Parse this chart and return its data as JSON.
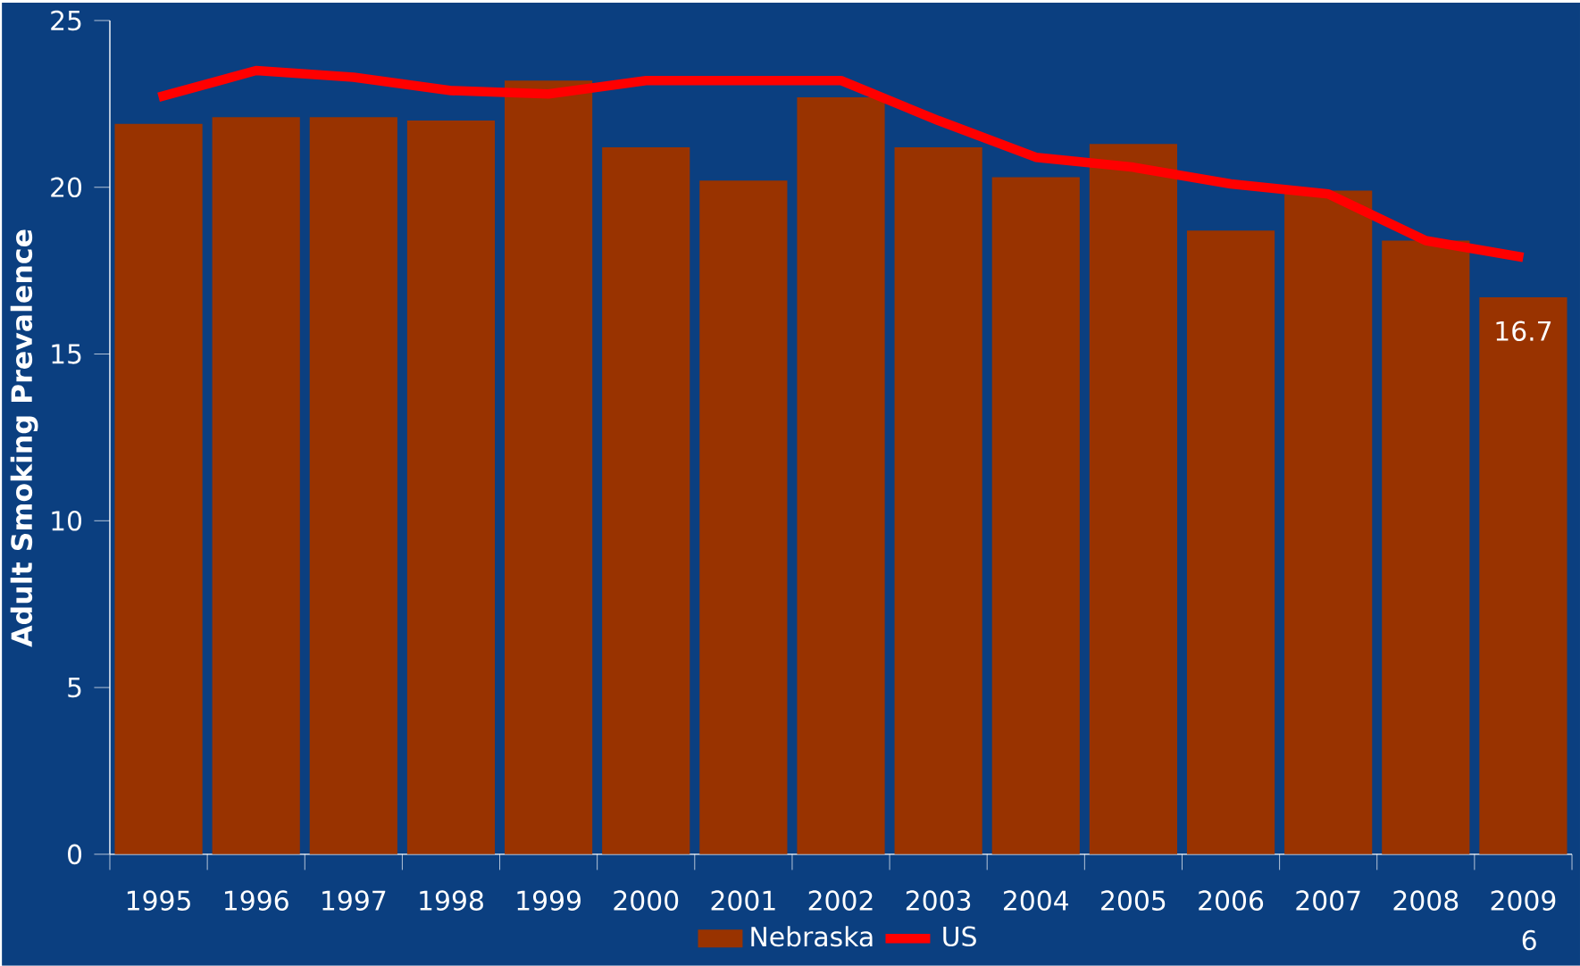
{
  "chart_data": {
    "type": "bar",
    "categories": [
      "1995",
      "1996",
      "1997",
      "1998",
      "1999",
      "2000",
      "2001",
      "2002",
      "2003",
      "2004",
      "2005",
      "2006",
      "2007",
      "2008",
      "2009"
    ],
    "ylabel": "Adult Smoking Prevalence",
    "ylim": [
      0,
      25
    ],
    "yticks": [
      0,
      5,
      10,
      15,
      20,
      25
    ],
    "legend": "bottom",
    "annotations": [
      "6"
    ],
    "series": [
      {
        "name": "Nebraska",
        "color": "#993300",
        "values": [
          21.9,
          22.1,
          22.1,
          22.0,
          23.2,
          21.2,
          20.2,
          22.7,
          21.2,
          20.3,
          21.3,
          18.7,
          19.9,
          18.4,
          16.7
        ],
        "value_labels": [
          null,
          null,
          null,
          null,
          null,
          null,
          null,
          null,
          null,
          null,
          null,
          null,
          null,
          null,
          "16.7"
        ]
      },
      {
        "name": "US",
        "type": "line",
        "color": "#ff0000",
        "values": [
          22.7,
          23.5,
          23.3,
          22.9,
          22.8,
          23.2,
          23.2,
          23.2,
          22.0,
          20.9,
          20.6,
          20.1,
          19.8,
          18.4,
          17.9
        ]
      }
    ]
  }
}
